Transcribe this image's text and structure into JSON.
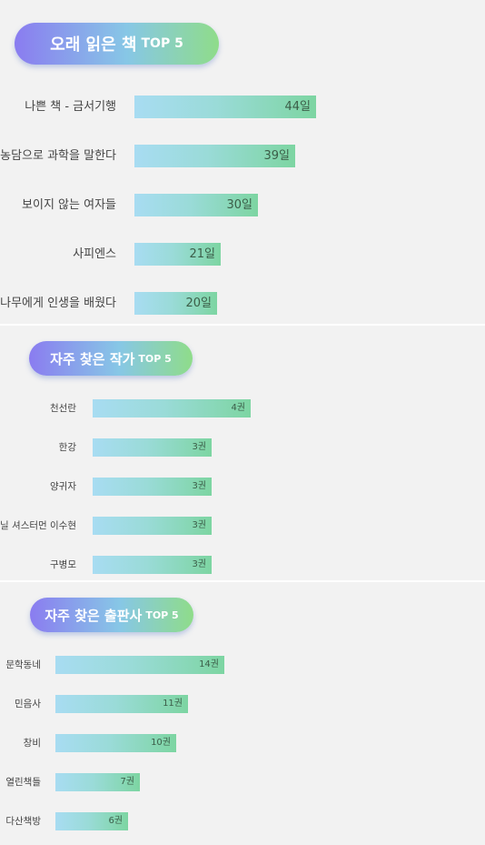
{
  "chart_data": [
    {
      "type": "bar",
      "orientation": "horizontal",
      "title": "오래 읽은 책",
      "title_suffix": "TOP 5",
      "categories": [
        "나쁜 책 - 금서기행",
        "만약 고교야구 여자 매니저가 피터 드러커를 읽는다면 농담으로 과학을 말한다",
        "보이지 않는 여자들",
        "사피엔스",
        "나는 나무에게 인생을 배웠다"
      ],
      "display_categories": [
        "나쁜 책 - 금서기행",
        "는 농담으로 과학을 말한다",
        "보이지 않는 여자들",
        "사피엔스",
        "는 나무에게 인생을 배웠다"
      ],
      "values": [
        44,
        39,
        30,
        21,
        20
      ],
      "value_labels": [
        "44일",
        "39일",
        "30일",
        "21일",
        "20일"
      ],
      "unit": "일"
    },
    {
      "type": "bar",
      "orientation": "horizontal",
      "title": "자주 찾은 작가",
      "title_suffix": "TOP 5",
      "categories": [
        "천선란",
        "한강",
        "양귀자",
        "닐 셔스터먼 이수현",
        "구병모"
      ],
      "values": [
        4,
        3,
        3,
        3,
        3
      ],
      "value_labels": [
        "4권",
        "3권",
        "3권",
        "3권",
        "3권"
      ],
      "unit": "권"
    },
    {
      "type": "bar",
      "orientation": "horizontal",
      "title": "자주 찾은 출판사",
      "title_suffix": "TOP 5",
      "categories": [
        "문학동네",
        "민음사",
        "창비",
        "열린책들",
        "다산책방"
      ],
      "values": [
        14,
        11,
        10,
        7,
        6
      ],
      "value_labels": [
        "14권",
        "11권",
        "10권",
        "7권",
        "6권"
      ],
      "unit": "권"
    }
  ]
}
